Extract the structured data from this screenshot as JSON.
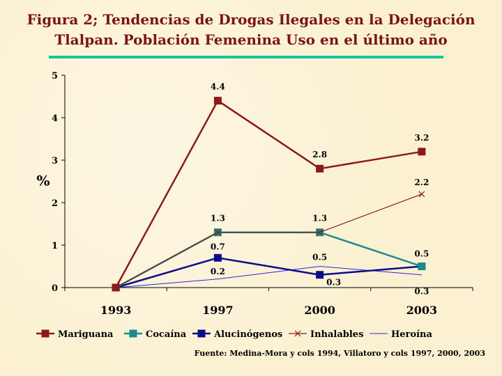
{
  "slide": {
    "title_line1": "Figura 2; Tendencias de Drogas Ilegales en  la Delegación",
    "title_line2": "Tlalpan. Población Femenina Uso en el último año",
    "source": "Fuente: Medina-Mora y cols 1994, Villatoro y cols 1997, 2000, 2003"
  },
  "chart_data": {
    "type": "line",
    "title": "",
    "xlabel": "",
    "ylabel": "%",
    "categories": [
      "1993",
      "1997",
      "2000",
      "2003"
    ],
    "ylim": [
      0,
      5
    ],
    "yticks": [
      0,
      1,
      2,
      3,
      4,
      5
    ],
    "grid": false,
    "legend_position": "bottom",
    "series": [
      {
        "name": "Mariguana",
        "color": "#8b1a1a",
        "marker": "square",
        "values": [
          0,
          4.4,
          2.8,
          3.2
        ],
        "labels": [
          "",
          "4.4",
          "2.8",
          "3.2"
        ]
      },
      {
        "name": "Cocaína",
        "color": "#1a8a8a",
        "marker": "square",
        "values": [
          0,
          1.3,
          1.3,
          0.5
        ],
        "labels": [
          "",
          "1.3",
          "1.3",
          ""
        ]
      },
      {
        "name": "Alucinógenos",
        "color": "#0c0c8a",
        "marker": "square",
        "values": [
          0,
          0.7,
          0.3,
          0.5
        ],
        "labels": [
          "",
          "0.7",
          "0.3",
          "0.5"
        ]
      },
      {
        "name": "Inhalables",
        "color": "#8b1a1a",
        "marker": "x",
        "values": [
          0,
          1.3,
          1.3,
          2.2
        ],
        "labels": [
          "",
          "",
          "",
          "2.2"
        ]
      },
      {
        "name": "Heroína",
        "color": "#2a2acc",
        "marker": "none",
        "values": [
          0,
          0.2,
          0.5,
          0.3
        ],
        "labels": [
          "",
          "0.2",
          "0.5",
          "0.3"
        ]
      }
    ]
  }
}
